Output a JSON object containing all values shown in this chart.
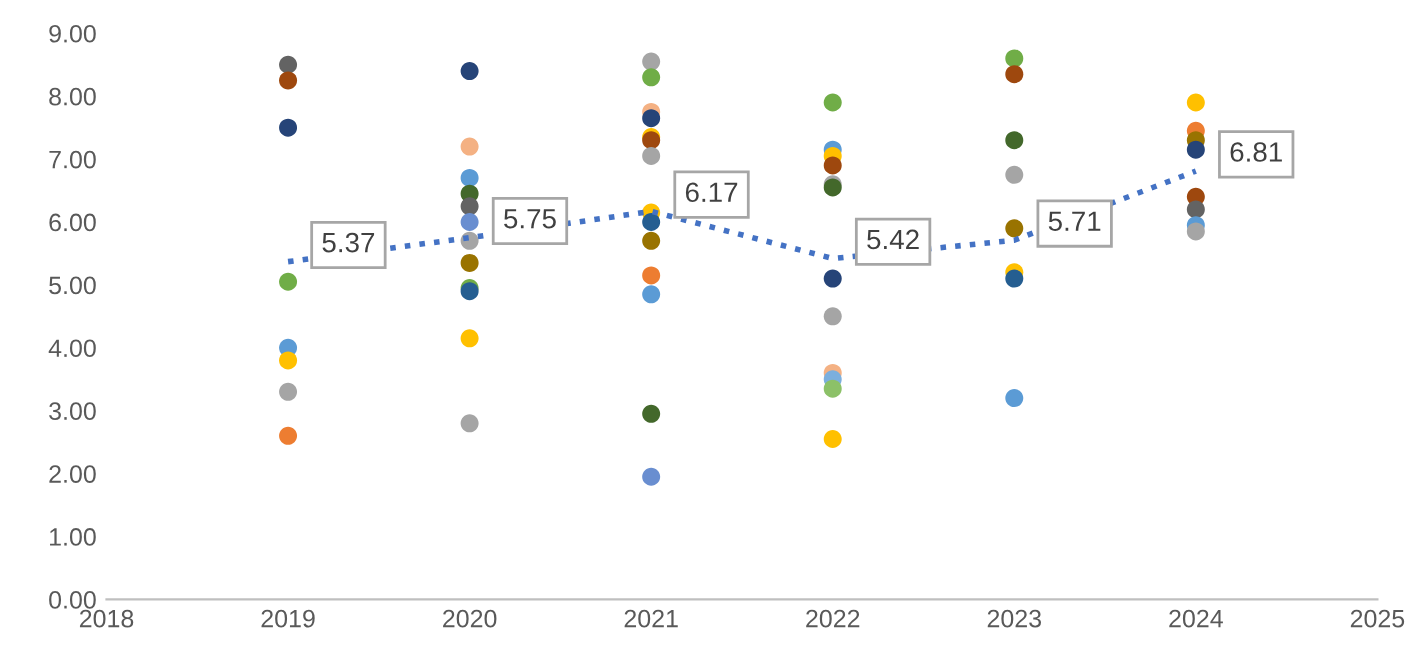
{
  "chart_data": {
    "type": "scatter",
    "series": [
      {
        "x": [
          2019,
          2019,
          2019,
          2019,
          2019,
          2019,
          2019,
          2019,
          2020,
          2020,
          2020,
          2020,
          2020,
          2020,
          2020,
          2020,
          2020,
          2020,
          2020,
          2020,
          2021,
          2021,
          2021,
          2021,
          2021,
          2021,
          2021,
          2021,
          2021,
          2021,
          2021,
          2021,
          2021,
          2021,
          2022,
          2022,
          2022,
          2022,
          2022,
          2022,
          2022,
          2022,
          2022,
          2022,
          2022,
          2022,
          2023,
          2023,
          2023,
          2023,
          2023,
          2023,
          2023,
          2023,
          2024,
          2024,
          2024,
          2024,
          2024,
          2024,
          2024,
          2024
        ],
        "values": [
          8.5,
          8.25,
          7.5,
          5.05,
          4.0,
          3.8,
          3.3,
          2.6,
          8.4,
          7.2,
          6.7,
          6.45,
          6.25,
          6.0,
          5.7,
          5.35,
          4.95,
          4.9,
          4.15,
          2.8,
          8.55,
          8.3,
          7.75,
          7.65,
          7.35,
          7.3,
          7.05,
          6.15,
          6.0,
          5.7,
          5.15,
          4.85,
          2.95,
          1.95,
          7.9,
          7.15,
          7.05,
          6.9,
          6.6,
          6.55,
          5.1,
          4.5,
          3.6,
          3.5,
          3.35,
          2.55,
          8.6,
          8.35,
          7.3,
          6.75,
          5.9,
          5.2,
          5.1,
          3.2,
          7.9,
          7.45,
          7.3,
          7.15,
          6.4,
          6.2,
          5.95,
          5.85
        ],
        "colors": [
          "#636363",
          "#9e480e",
          "#264478",
          "#70ad47",
          "#5b9bd5",
          "#ffc000",
          "#a5a5a5",
          "#ed7d31",
          "#264478",
          "#f4b183",
          "#5b9bd5",
          "#43682b",
          "#636363",
          "#698ed0",
          "#a5a5a5",
          "#997300",
          "#70ad47",
          "#255e91",
          "#ffc000",
          "#a5a5a5",
          "#a5a5a5",
          "#70ad47",
          "#f4b183",
          "#264478",
          "#ffc000",
          "#9e480e",
          "#a5a5a5",
          "#ffc000",
          "#255e91",
          "#997300",
          "#ed7d31",
          "#5b9bd5",
          "#43682b",
          "#698ed0",
          "#70ad47",
          "#5b9bd5",
          "#ffc000",
          "#9e480e",
          "#a5a5a5",
          "#43682b",
          "#264478",
          "#a5a5a5",
          "#f4b183",
          "#7cafdd",
          "#8cc168",
          "#ffc000",
          "#70ad47",
          "#9e480e",
          "#43682b",
          "#a5a5a5",
          "#997300",
          "#ffc000",
          "#255e91",
          "#5b9bd5",
          "#ffc000",
          "#ed7d31",
          "#997300",
          "#264478",
          "#9e480e",
          "#636363",
          "#5b9bd5",
          "#a5a5a5"
        ],
        "marker": "circle"
      },
      {
        "type": "line",
        "x": [
          2019,
          2020,
          2021,
          2022,
          2023,
          2024
        ],
        "values": [
          5.37,
          5.75,
          6.17,
          5.42,
          5.71,
          6.81
        ],
        "color": "#4472c4",
        "line_style": "dotted",
        "marker": "none",
        "data_labels": true
      }
    ],
    "xlim": [
      2018,
      2025
    ],
    "xticks": [
      2018,
      2019,
      2020,
      2021,
      2022,
      2023,
      2024,
      2025
    ],
    "ylim": [
      0,
      9
    ],
    "yticks": [
      {
        "value": 0,
        "label": "0.00"
      },
      {
        "value": 1,
        "label": "1.00"
      },
      {
        "value": 2,
        "label": "2.00"
      },
      {
        "value": 3,
        "label": "3.00"
      },
      {
        "value": 4,
        "label": "4.00"
      },
      {
        "value": 5,
        "label": "5.00"
      },
      {
        "value": 6,
        "label": "6.00"
      },
      {
        "value": 7,
        "label": "7.00"
      },
      {
        "value": 8,
        "label": "8.00"
      },
      {
        "value": 9,
        "label": "9.00"
      }
    ],
    "grid": false,
    "legend": false
  }
}
